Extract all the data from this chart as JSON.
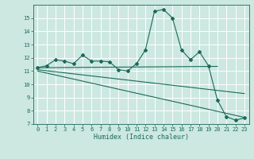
{
  "xlabel": "Humidex (Indice chaleur)",
  "bg_color": "#cce8e0",
  "grid_color": "#b0d8d0",
  "line_color": "#1a6a5a",
  "xlim": [
    -0.5,
    23.5
  ],
  "ylim": [
    7,
    16
  ],
  "xticks": [
    0,
    1,
    2,
    3,
    4,
    5,
    6,
    7,
    8,
    9,
    10,
    11,
    12,
    13,
    14,
    15,
    16,
    17,
    18,
    19,
    20,
    21,
    22,
    23
  ],
  "yticks": [
    7,
    8,
    9,
    10,
    11,
    12,
    13,
    14,
    15
  ],
  "line1_x": [
    0,
    1,
    2,
    3,
    4,
    5,
    6,
    7,
    8,
    9,
    10,
    11,
    12,
    13,
    14,
    15,
    16,
    17,
    18,
    19,
    20,
    21,
    22,
    23
  ],
  "line1_y": [
    11.25,
    11.4,
    11.85,
    11.75,
    11.55,
    12.2,
    11.75,
    11.75,
    11.7,
    11.1,
    11.0,
    11.55,
    12.6,
    15.5,
    15.65,
    15.0,
    12.6,
    11.85,
    12.45,
    11.4,
    8.8,
    7.55,
    7.3,
    7.45
  ],
  "line2_x": [
    0,
    20
  ],
  "line2_y": [
    11.25,
    11.35
  ],
  "line3_x": [
    0,
    23
  ],
  "line3_y": [
    11.1,
    9.3
  ],
  "line4_x": [
    0,
    23
  ],
  "line4_y": [
    11.0,
    7.5
  ]
}
